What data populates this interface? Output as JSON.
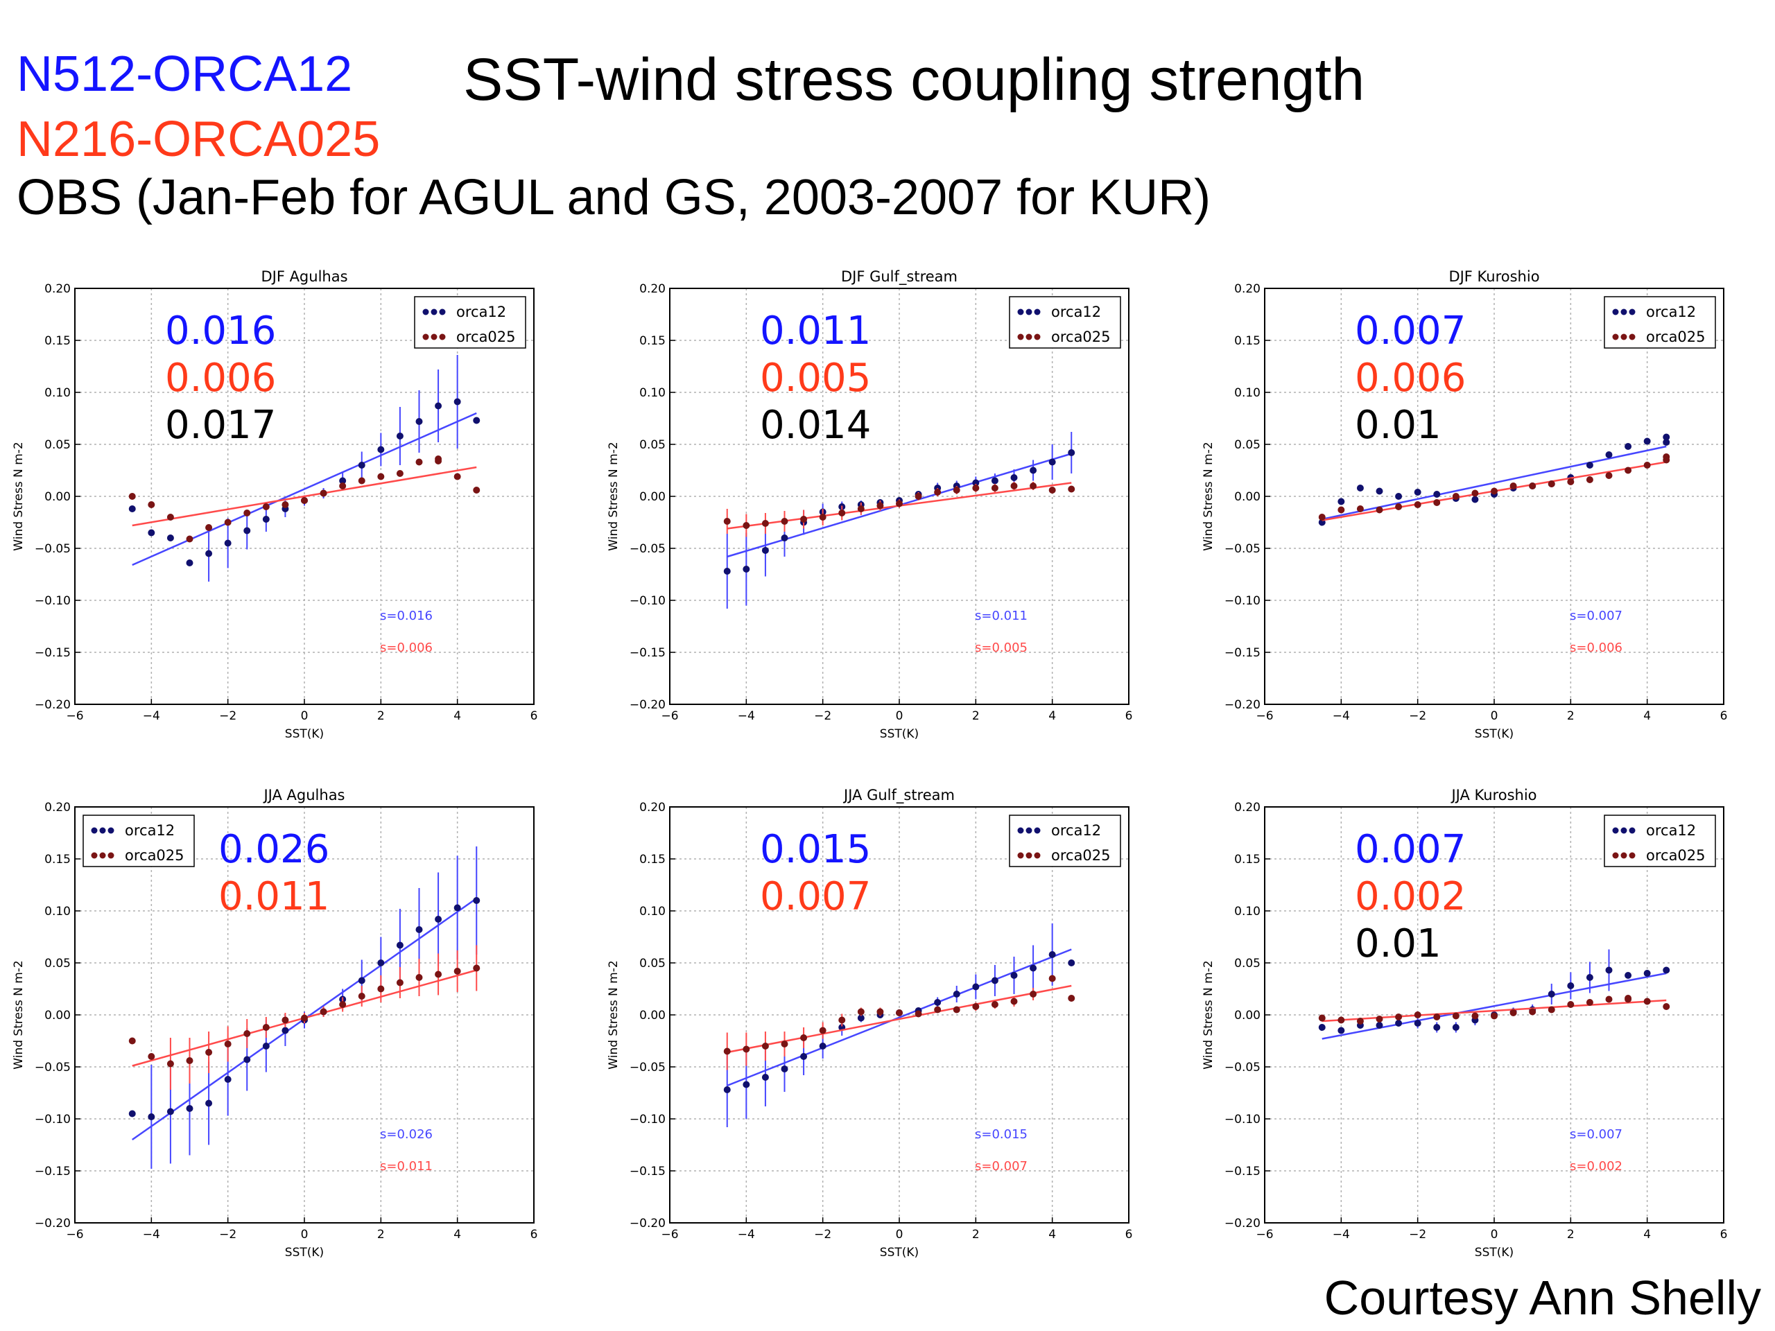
{
  "header": {
    "model_hi": "N512-ORCA12",
    "model_lo": "N216-ORCA025",
    "obs": "OBS (Jan-Feb for AGUL and GS, 2003-2007 for KUR)",
    "title": "SST-wind stress coupling strength",
    "credit": "Courtesy Ann Shelly"
  },
  "colors": {
    "model_hi": "#1414ff",
    "model_lo": "#ff3a1a",
    "obs": "#000000",
    "orca12_marker": "#10106e",
    "orca025_marker": "#7a1414",
    "orca12_line": "#4646ff",
    "orca025_line": "#ff4a4a"
  },
  "chart_data": [
    {
      "type": "scatter",
      "title": "DJF Agulhas",
      "xlabel": "SST(K)",
      "ylabel": "Wind Stress N m-2",
      "xlim": [
        -6,
        6
      ],
      "ylim": [
        -0.2,
        0.2
      ],
      "xticks": [
        "−6",
        "−4",
        "−2",
        "0",
        "2",
        "4",
        "6"
      ],
      "yticks": [
        "0.20",
        "0.15",
        "0.10",
        "0.05",
        "0.00",
        "−0.05",
        "−0.10",
        "−0.15",
        "−0.20"
      ],
      "grid": true,
      "legend_position": "top-right",
      "big_labels": [
        {
          "text": "0.016",
          "series": "orca12"
        },
        {
          "text": "0.006",
          "series": "orca025"
        },
        {
          "text": "0.017",
          "series": "obs"
        }
      ],
      "small_labels": [
        "s=0.016",
        "s=0.006"
      ],
      "x": [
        -4.5,
        -4,
        -3.5,
        -3,
        -2.5,
        -2,
        -1.5,
        -1,
        -0.5,
        0,
        0.5,
        1,
        1.5,
        2,
        2.5,
        3,
        3.5,
        4,
        4.5
      ],
      "series": [
        {
          "name": "orca12",
          "values": [
            -0.012,
            -0.035,
            -0.04,
            -0.064,
            -0.055,
            -0.045,
            -0.033,
            -0.022,
            -0.012,
            -0.004,
            0.003,
            0.015,
            0.03,
            0.045,
            0.058,
            0.072,
            0.087,
            0.091,
            0.073
          ],
          "errors": [
            0,
            0,
            0,
            0,
            0.027,
            0.024,
            0.018,
            0.012,
            0.008,
            0.005,
            0.005,
            0.008,
            0.013,
            0.016,
            0.028,
            0.03,
            0.035,
            0.045,
            0
          ],
          "fit": [
            -0.066,
            0.08
          ]
        },
        {
          "name": "orca025",
          "values": [
            0.0,
            -0.008,
            -0.02,
            -0.041,
            -0.03,
            -0.025,
            -0.016,
            -0.01,
            -0.008,
            -0.004,
            0.003,
            0.01,
            0.015,
            0.019,
            0.022,
            0.033,
            0.036,
            0.034,
            0.019,
            0.006
          ],
          "x": [
            -4.5,
            -4,
            -3.5,
            -3,
            -2.5,
            -2,
            -1.5,
            -1,
            -0.5,
            0,
            0.5,
            1,
            1.5,
            2,
            2.5,
            3,
            3.5,
            3.5,
            4,
            4.5
          ],
          "errors": [],
          "fit": [
            -0.028,
            0.028
          ]
        }
      ]
    },
    {
      "type": "scatter",
      "title": "DJF Gulf_stream",
      "xlabel": "SST(K)",
      "ylabel": "Wind Stress N m-2",
      "xlim": [
        -6,
        6
      ],
      "ylim": [
        -0.2,
        0.2
      ],
      "xticks": [
        "−6",
        "−4",
        "−2",
        "0",
        "2",
        "4",
        "6"
      ],
      "yticks": [
        "0.20",
        "0.15",
        "0.10",
        "0.05",
        "0.00",
        "−0.05",
        "−0.10",
        "−0.15",
        "−0.20"
      ],
      "grid": true,
      "legend_position": "top-right",
      "big_labels": [
        {
          "text": "0.011",
          "series": "orca12"
        },
        {
          "text": "0.005",
          "series": "orca025"
        },
        {
          "text": "0.014",
          "series": "obs"
        }
      ],
      "small_labels": [
        "s=0.011",
        "s=0.005"
      ],
      "x": [
        -4.5,
        -4,
        -3.5,
        -3,
        -2.5,
        -2,
        -1.5,
        -1,
        -0.5,
        0,
        0.5,
        1,
        1.5,
        2,
        2.5,
        3,
        3.5,
        4,
        4.5
      ],
      "series": [
        {
          "name": "orca12",
          "values": [
            -0.072,
            -0.07,
            -0.052,
            -0.04,
            -0.025,
            -0.015,
            -0.01,
            -0.008,
            -0.006,
            -0.004,
            0.002,
            0.008,
            0.01,
            0.013,
            0.015,
            0.018,
            0.025,
            0.033,
            0.042
          ],
          "errors": [
            0.036,
            0.035,
            0.025,
            0.018,
            0.012,
            0.008,
            0.005,
            0.004,
            0.003,
            0.003,
            0.003,
            0.005,
            0.005,
            0.006,
            0.007,
            0.008,
            0.01,
            0.017,
            0.02
          ],
          "fit": [
            -0.058,
            0.041
          ]
        },
        {
          "name": "orca025",
          "values": [
            -0.024,
            -0.028,
            -0.026,
            -0.024,
            -0.022,
            -0.02,
            -0.016,
            -0.012,
            -0.009,
            -0.007,
            0.0,
            0.004,
            0.006,
            0.008,
            0.008,
            0.01,
            0.01,
            0.006,
            0.007
          ],
          "errors": [
            0.012,
            0.011,
            0.01,
            0.01,
            0.009,
            0.008,
            0.007,
            0.006,
            0.005,
            0.004,
            0.004,
            0.004,
            0.004,
            0.004,
            0.004,
            0.004,
            0.004,
            0,
            0
          ],
          "fit": [
            -0.031,
            0.013
          ]
        }
      ]
    },
    {
      "type": "scatter",
      "title": "DJF Kuroshio",
      "xlabel": "SST(K)",
      "ylabel": "Wind Stress N m-2",
      "xlim": [
        -6,
        6
      ],
      "ylim": [
        -0.2,
        0.2
      ],
      "xticks": [
        "−6",
        "−4",
        "−2",
        "0",
        "2",
        "4",
        "6"
      ],
      "yticks": [
        "0.20",
        "0.15",
        "0.10",
        "0.05",
        "0.00",
        "−0.05",
        "−0.10",
        "−0.15",
        "−0.20"
      ],
      "grid": true,
      "legend_position": "top-right",
      "big_labels": [
        {
          "text": "0.007",
          "series": "orca12"
        },
        {
          "text": "0.006",
          "series": "orca025"
        },
        {
          "text": "0.01",
          "series": "obs"
        }
      ],
      "small_labels": [
        "s=0.007",
        "s=0.006"
      ],
      "x": [
        -4.5,
        -4,
        -3.5,
        -3,
        -2.5,
        -2,
        -1.5,
        -1,
        -0.5,
        0,
        0.5,
        1,
        1.5,
        2,
        2.5,
        3,
        3.5,
        4,
        4.5
      ],
      "series": [
        {
          "name": "orca12",
          "values": [
            -0.025,
            -0.005,
            0.008,
            0.005,
            0.0,
            0.004,
            0.002,
            -0.002,
            -0.003,
            0.002,
            0.008,
            0.01,
            0.012,
            0.018,
            0.03,
            0.04,
            0.048,
            0.053,
            0.052,
            0.057
          ],
          "x": [
            -4.5,
            -4,
            -3.5,
            -3,
            -2.5,
            -2,
            -1.5,
            -1,
            -0.5,
            0,
            0.5,
            1,
            1.5,
            2,
            2.5,
            3,
            3.5,
            4,
            4.5,
            4.5
          ],
          "errors": [],
          "fit": [
            -0.022,
            0.048
          ]
        },
        {
          "name": "orca025",
          "values": [
            -0.02,
            -0.013,
            -0.012,
            -0.013,
            -0.01,
            -0.008,
            -0.006,
            0.0,
            0.003,
            0.005,
            0.01,
            0.01,
            0.012,
            0.014,
            0.016,
            0.02,
            0.025,
            0.03,
            0.035,
            0.038
          ],
          "x": [
            -4.5,
            -4,
            -3.5,
            -3,
            -2.5,
            -2,
            -1.5,
            -1,
            -0.5,
            0,
            0.5,
            1,
            1.5,
            2,
            2.5,
            3,
            3.5,
            4,
            4.5,
            4.5
          ],
          "errors": [],
          "fit": [
            -0.023,
            0.033
          ]
        }
      ]
    },
    {
      "type": "scatter",
      "title": "JJA Agulhas",
      "xlabel": "SST(K)",
      "ylabel": "Wind Stress N m-2",
      "xlim": [
        -6,
        6
      ],
      "ylim": [
        -0.2,
        0.2
      ],
      "xticks": [
        "−6",
        "−4",
        "−2",
        "0",
        "2",
        "4",
        "6"
      ],
      "yticks": [
        "0.20",
        "0.15",
        "0.10",
        "0.05",
        "0.00",
        "−0.05",
        "−0.10",
        "−0.15",
        "−0.20"
      ],
      "grid": true,
      "legend_position": "top-left",
      "big_labels": [
        {
          "text": "0.026",
          "series": "orca12"
        },
        {
          "text": "0.011",
          "series": "orca025"
        }
      ],
      "small_labels": [
        "s=0.026",
        "s=0.011"
      ],
      "x": [
        -4.5,
        -4,
        -3.5,
        -3,
        -2.5,
        -2,
        -1.5,
        -1,
        -0.5,
        0,
        0.5,
        1,
        1.5,
        2,
        2.5,
        3,
        3.5,
        4,
        4.5
      ],
      "series": [
        {
          "name": "orca12",
          "values": [
            -0.095,
            -0.098,
            -0.093,
            -0.09,
            -0.085,
            -0.062,
            -0.043,
            -0.03,
            -0.015,
            -0.005,
            0.003,
            0.015,
            0.033,
            0.05,
            0.067,
            0.082,
            0.092,
            0.103,
            0.11
          ],
          "errors": [
            0,
            0.05,
            0.05,
            0.045,
            0.04,
            0.035,
            0.03,
            0.025,
            0.015,
            0.008,
            0.005,
            0.01,
            0.02,
            0.025,
            0.035,
            0.04,
            0.045,
            0.05,
            0.052
          ],
          "fit": [
            -0.12,
            0.112
          ]
        },
        {
          "name": "orca025",
          "values": [
            -0.025,
            -0.04,
            -0.047,
            -0.044,
            -0.036,
            -0.028,
            -0.018,
            -0.012,
            -0.005,
            -0.003,
            0.003,
            0.01,
            0.018,
            0.025,
            0.031,
            0.036,
            0.039,
            0.042,
            0.045
          ],
          "errors": [
            0,
            0,
            0.025,
            0.022,
            0.02,
            0.017,
            0.014,
            0.01,
            0.007,
            0.005,
            0.005,
            0.007,
            0.01,
            0.013,
            0.015,
            0.018,
            0.02,
            0.02,
            0.022
          ],
          "fit": [
            -0.049,
            0.043
          ]
        }
      ]
    },
    {
      "type": "scatter",
      "title": "JJA Gulf_stream",
      "xlabel": "SST(K)",
      "ylabel": "Wind Stress N m-2",
      "xlim": [
        -6,
        6
      ],
      "ylim": [
        -0.2,
        0.2
      ],
      "xticks": [
        "−6",
        "−4",
        "−2",
        "0",
        "2",
        "4",
        "6"
      ],
      "yticks": [
        "0.20",
        "0.15",
        "0.10",
        "0.05",
        "0.00",
        "−0.05",
        "−0.10",
        "−0.15",
        "−0.20"
      ],
      "grid": true,
      "legend_position": "top-right",
      "big_labels": [
        {
          "text": "0.015",
          "series": "orca12"
        },
        {
          "text": "0.007",
          "series": "orca025"
        }
      ],
      "small_labels": [
        "s=0.015",
        "s=0.007"
      ],
      "x": [
        -4.5,
        -4,
        -3.5,
        -3,
        -2.5,
        -2,
        -1.5,
        -1,
        -0.5,
        0,
        0.5,
        1,
        1.5,
        2,
        2.5,
        3,
        3.5,
        4,
        4.5
      ],
      "series": [
        {
          "name": "orca12",
          "values": [
            -0.072,
            -0.067,
            -0.06,
            -0.052,
            -0.04,
            -0.03,
            -0.012,
            -0.003,
            0.0,
            0.002,
            0.004,
            0.012,
            0.02,
            0.027,
            0.033,
            0.038,
            0.045,
            0.058,
            0.05
          ],
          "errors": [
            0.036,
            0.033,
            0.028,
            0.022,
            0.018,
            0.012,
            0.008,
            0.004,
            0.003,
            0.002,
            0.003,
            0.005,
            0.008,
            0.012,
            0.015,
            0.018,
            0.022,
            0.03,
            0
          ],
          "fit": [
            -0.068,
            0.063
          ]
        },
        {
          "name": "orca025",
          "values": [
            -0.035,
            -0.033,
            -0.03,
            -0.028,
            -0.022,
            -0.015,
            -0.005,
            0.003,
            0.003,
            0.002,
            0.001,
            0.005,
            0.005,
            0.008,
            0.01,
            0.013,
            0.02,
            0.035,
            0.016
          ],
          "errors": [
            0.018,
            0.016,
            0.014,
            0.012,
            0.01,
            0.008,
            0.006,
            0.004,
            0.004,
            0.003,
            0.003,
            0.003,
            0.003,
            0.004,
            0.004,
            0.005,
            0.006,
            0,
            0
          ],
          "fit": [
            -0.036,
            0.028
          ]
        }
      ]
    },
    {
      "type": "scatter",
      "title": "JJA Kuroshio",
      "xlabel": "SST(K)",
      "ylabel": "Wind Stress N m-2",
      "xlim": [
        -6,
        6
      ],
      "ylim": [
        -0.2,
        0.2
      ],
      "xticks": [
        "−6",
        "−4",
        "−2",
        "0",
        "2",
        "4",
        "6"
      ],
      "yticks": [
        "0.20",
        "0.15",
        "0.10",
        "0.05",
        "0.00",
        "−0.05",
        "−0.10",
        "−0.15",
        "−0.20"
      ],
      "grid": true,
      "legend_position": "top-right",
      "big_labels": [
        {
          "text": "0.007",
          "series": "orca12"
        },
        {
          "text": "0.002",
          "series": "orca025"
        },
        {
          "text": "0.01",
          "series": "obs"
        }
      ],
      "small_labels": [
        "s=0.007",
        "s=0.002"
      ],
      "x": [
        -4.5,
        -4,
        -3.5,
        -3,
        -2.5,
        -2,
        -1.5,
        -1,
        -0.5,
        0,
        0.5,
        1,
        1.5,
        2,
        2.5,
        3,
        3.5,
        4,
        4.5
      ],
      "series": [
        {
          "name": "orca12",
          "values": [
            -0.012,
            -0.015,
            -0.01,
            -0.01,
            -0.008,
            -0.008,
            -0.012,
            -0.012,
            -0.005,
            0.0,
            0.003,
            0.005,
            0.02,
            0.028,
            0.036,
            0.043,
            0.038,
            0.04,
            0.043
          ],
          "errors": [
            0,
            0,
            0,
            0,
            0,
            0.005,
            0.005,
            0.005,
            0.005,
            0.004,
            0.004,
            0.005,
            0.01,
            0.013,
            0.015,
            0.02,
            0,
            0,
            0
          ],
          "fit": [
            -0.023,
            0.04
          ]
        },
        {
          "name": "orca025",
          "values": [
            -0.003,
            -0.005,
            -0.006,
            -0.004,
            -0.002,
            0.0,
            -0.002,
            -0.001,
            -0.001,
            -0.001,
            0.002,
            0.003,
            0.005,
            0.01,
            0.012,
            0.015,
            0.016,
            0.015,
            0.013,
            0.008
          ],
          "x": [
            -4.5,
            -4,
            -3.5,
            -3,
            -2.5,
            -2,
            -1.5,
            -1,
            -0.5,
            0,
            0.5,
            1,
            1.5,
            2,
            2.5,
            3,
            3.5,
            3.5,
            4,
            4.5
          ],
          "errors": [],
          "fit": [
            -0.006,
            0.014
          ]
        }
      ]
    }
  ]
}
